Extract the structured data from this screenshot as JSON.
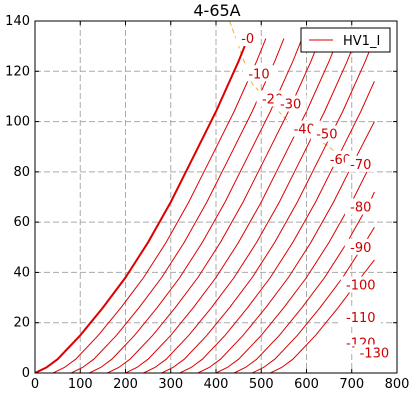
{
  "chart_data": {
    "type": "line",
    "title": "4-65A",
    "xlabel": "",
    "ylabel": "",
    "xlim": [
      0,
      800
    ],
    "ylim": [
      0,
      140
    ],
    "xticks": [
      0,
      100,
      200,
      300,
      400,
      500,
      600,
      700,
      800
    ],
    "yticks": [
      0,
      20,
      40,
      60,
      80,
      100,
      120,
      140
    ],
    "grid": true,
    "legend": {
      "position": "top-right",
      "entries": [
        "HV1_I"
      ]
    },
    "colors": {
      "curves": "#dd0000",
      "bias_line": "#f0b030",
      "grid": "#aaaaaa"
    },
    "series": [
      {
        "label": "-0",
        "offset": 0,
        "points": [
          [
            0,
            0
          ],
          [
            25,
            2.2
          ],
          [
            50,
            5.5
          ],
          [
            100,
            15
          ],
          [
            150,
            26
          ],
          [
            200,
            38
          ],
          [
            250,
            52
          ],
          [
            300,
            68
          ],
          [
            350,
            86
          ],
          [
            400,
            104
          ],
          [
            450,
            124
          ],
          [
            470,
            133
          ]
        ]
      },
      {
        "label": "-10",
        "offset": 40,
        "points": [
          [
            40,
            0
          ],
          [
            65,
            2.2
          ],
          [
            90,
            5.5
          ],
          [
            140,
            15
          ],
          [
            190,
            26
          ],
          [
            240,
            38
          ],
          [
            290,
            52
          ],
          [
            340,
            68
          ],
          [
            390,
            86
          ],
          [
            440,
            104
          ],
          [
            490,
            124
          ],
          [
            510,
            133
          ]
        ]
      },
      {
        "label": "-20",
        "offset": 80,
        "points": [
          [
            80,
            0
          ],
          [
            105,
            2.2
          ],
          [
            130,
            5.5
          ],
          [
            180,
            15
          ],
          [
            230,
            26
          ],
          [
            280,
            38
          ],
          [
            330,
            52
          ],
          [
            380,
            68
          ],
          [
            430,
            86
          ],
          [
            480,
            104
          ],
          [
            530,
            124
          ],
          [
            550,
            133
          ]
        ]
      },
      {
        "label": "-30",
        "offset": 120,
        "points": [
          [
            120,
            0
          ],
          [
            145,
            2.2
          ],
          [
            170,
            5.5
          ],
          [
            220,
            15
          ],
          [
            270,
            26
          ],
          [
            320,
            38
          ],
          [
            370,
            52
          ],
          [
            420,
            68
          ],
          [
            470,
            86
          ],
          [
            520,
            104
          ],
          [
            570,
            124
          ],
          [
            590,
            133
          ]
        ]
      },
      {
        "label": "-40",
        "offset": 160,
        "points": [
          [
            160,
            0
          ],
          [
            185,
            2.2
          ],
          [
            210,
            5.5
          ],
          [
            260,
            15
          ],
          [
            310,
            26
          ],
          [
            360,
            38
          ],
          [
            410,
            52
          ],
          [
            460,
            68
          ],
          [
            510,
            86
          ],
          [
            560,
            104
          ],
          [
            610,
            124
          ],
          [
            630,
            133
          ]
        ]
      },
      {
        "label": "-50",
        "offset": 200,
        "points": [
          [
            200,
            0
          ],
          [
            225,
            2.2
          ],
          [
            250,
            5.5
          ],
          [
            300,
            15
          ],
          [
            350,
            26
          ],
          [
            400,
            38
          ],
          [
            450,
            52
          ],
          [
            500,
            68
          ],
          [
            550,
            86
          ],
          [
            600,
            104
          ],
          [
            650,
            124
          ],
          [
            670,
            133
          ]
        ]
      },
      {
        "label": "-60",
        "offset": 240,
        "points": [
          [
            240,
            0
          ],
          [
            265,
            2.2
          ],
          [
            290,
            5.5
          ],
          [
            340,
            15
          ],
          [
            390,
            26
          ],
          [
            440,
            38
          ],
          [
            490,
            52
          ],
          [
            540,
            68
          ],
          [
            590,
            86
          ],
          [
            640,
            104
          ],
          [
            690,
            124
          ],
          [
            710,
            133
          ]
        ]
      },
      {
        "label": "-70",
        "offset": 280,
        "points": [
          [
            280,
            0
          ],
          [
            305,
            2.2
          ],
          [
            330,
            5.5
          ],
          [
            380,
            15
          ],
          [
            430,
            26
          ],
          [
            480,
            38
          ],
          [
            530,
            52
          ],
          [
            580,
            68
          ],
          [
            630,
            86
          ],
          [
            680,
            104
          ],
          [
            730,
            124
          ],
          [
            750,
            133
          ]
        ]
      },
      {
        "label": "-80",
        "offset": 320,
        "points": [
          [
            320,
            0
          ],
          [
            345,
            2.2
          ],
          [
            370,
            5.5
          ],
          [
            420,
            15
          ],
          [
            470,
            26
          ],
          [
            520,
            38
          ],
          [
            570,
            52
          ],
          [
            620,
            68
          ],
          [
            670,
            86
          ],
          [
            720,
            104
          ],
          [
            750,
            116
          ]
        ]
      },
      {
        "label": "-90",
        "offset": 360,
        "points": [
          [
            360,
            0
          ],
          [
            385,
            2.2
          ],
          [
            410,
            5.5
          ],
          [
            460,
            15
          ],
          [
            510,
            26
          ],
          [
            560,
            38
          ],
          [
            610,
            52
          ],
          [
            660,
            68
          ],
          [
            710,
            86
          ],
          [
            750,
            100
          ]
        ]
      },
      {
        "label": "-100",
        "offset": 400,
        "points": [
          [
            400,
            0
          ],
          [
            425,
            2.2
          ],
          [
            450,
            5.5
          ],
          [
            500,
            15
          ],
          [
            550,
            26
          ],
          [
            600,
            38
          ],
          [
            650,
            52
          ],
          [
            700,
            68
          ],
          [
            750,
            86
          ]
        ]
      },
      {
        "label": "-110",
        "offset": 440,
        "points": [
          [
            440,
            0
          ],
          [
            465,
            2.2
          ],
          [
            490,
            5.5
          ],
          [
            540,
            15
          ],
          [
            590,
            26
          ],
          [
            640,
            38
          ],
          [
            690,
            52
          ],
          [
            740,
            68
          ],
          [
            750,
            72
          ]
        ]
      },
      {
        "label": "-120",
        "offset": 480,
        "points": [
          [
            480,
            0
          ],
          [
            505,
            2.2
          ],
          [
            530,
            5.5
          ],
          [
            580,
            15
          ],
          [
            630,
            26
          ],
          [
            680,
            38
          ],
          [
            730,
            52
          ],
          [
            750,
            58
          ]
        ]
      },
      {
        "label": "-130",
        "offset": 520,
        "points": [
          [
            520,
            0
          ],
          [
            545,
            2.2
          ],
          [
            570,
            5.5
          ],
          [
            620,
            15
          ],
          [
            670,
            26
          ],
          [
            720,
            38
          ],
          [
            750,
            45
          ]
        ]
      }
    ],
    "label_positions": [
      {
        "label": "-0",
        "x": 470,
        "y": 132
      },
      {
        "label": "-10",
        "x": 495,
        "y": 118
      },
      {
        "label": "-20",
        "x": 525,
        "y": 108
      },
      {
        "label": "-30",
        "x": 565,
        "y": 106
      },
      {
        "label": "-40",
        "x": 595,
        "y": 96
      },
      {
        "label": "-50",
        "x": 645,
        "y": 94
      },
      {
        "label": "-60",
        "x": 675,
        "y": 84
      },
      {
        "label": "-70",
        "x": 720,
        "y": 82
      },
      {
        "label": "-80",
        "x": 720,
        "y": 65
      },
      {
        "label": "-90",
        "x": 720,
        "y": 49
      },
      {
        "label": "-100",
        "x": 720,
        "y": 34
      },
      {
        "label": "-110",
        "x": 720,
        "y": 21
      },
      {
        "label": "-120",
        "x": 720,
        "y": 11
      },
      {
        "label": "-130",
        "x": 750,
        "y": 7
      }
    ],
    "bias_line": [
      [
        430,
        140
      ],
      [
        480,
        115
      ],
      [
        560,
        100
      ],
      [
        650,
        90
      ],
      [
        700,
        82
      ]
    ]
  }
}
